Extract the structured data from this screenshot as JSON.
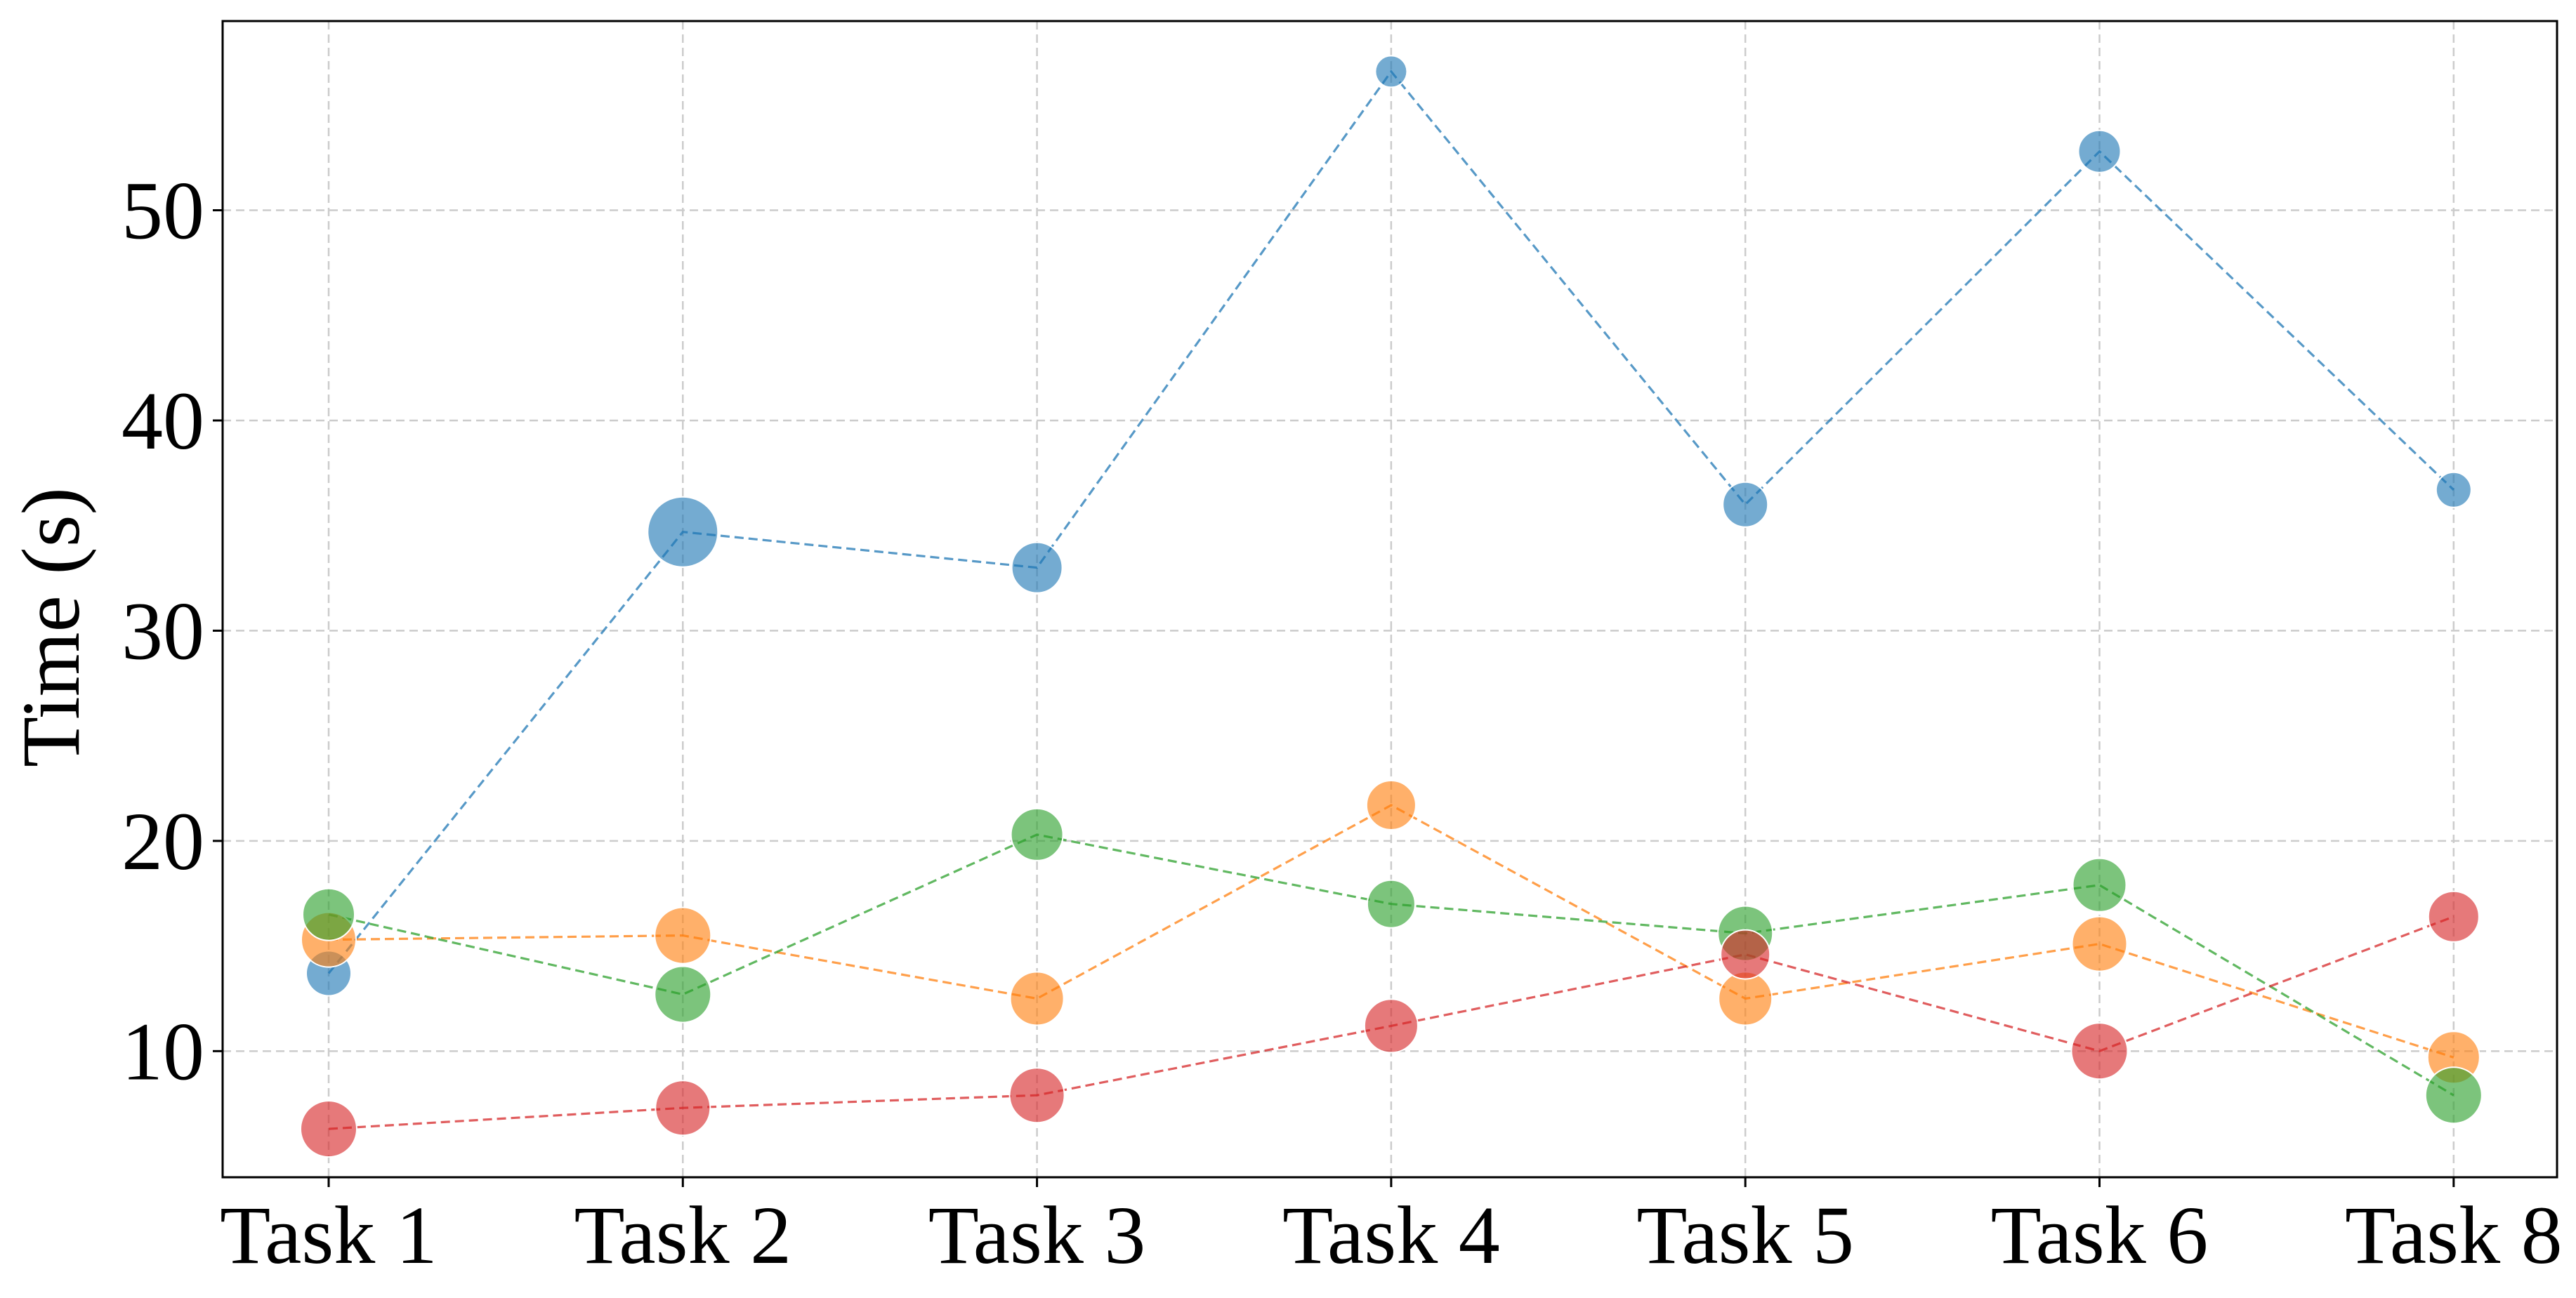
{
  "chart_data": {
    "type": "scatter",
    "title": "",
    "xlabel": "",
    "ylabel": "Time (s)",
    "categories": [
      "Task 1",
      "Task 2",
      "Task 3",
      "Task 4",
      "Task 5",
      "Task 6",
      "Task 8"
    ],
    "ylim": [
      4,
      59
    ],
    "yticks": [
      10,
      20,
      30,
      40,
      50
    ],
    "grid": true,
    "legend": false,
    "series": [
      {
        "color": "#1f77b4",
        "line_style": "dashed",
        "values": [
          13.7,
          34.7,
          33.0,
          56.6,
          36.0,
          52.8,
          36.7
        ],
        "marker_sizes": [
          0.64,
          1.0,
          0.72,
          0.45,
          0.64,
          0.6,
          0.5
        ]
      },
      {
        "color": "#ff7f0e",
        "line_style": "dashed",
        "values": [
          15.3,
          15.5,
          12.5,
          21.7,
          12.5,
          15.1,
          9.7
        ],
        "marker_sizes": [
          0.78,
          0.8,
          0.76,
          0.7,
          0.76,
          0.78,
          0.74
        ]
      },
      {
        "color": "#2ca02c",
        "line_style": "dashed",
        "values": [
          16.5,
          12.7,
          20.3,
          17.0,
          15.6,
          17.9,
          7.9
        ],
        "marker_sizes": [
          0.74,
          0.8,
          0.74,
          0.68,
          0.78,
          0.76,
          0.8
        ]
      },
      {
        "color": "#d62728",
        "line_style": "dashed",
        "values": [
          6.3,
          7.3,
          7.9,
          11.2,
          14.6,
          10.0,
          16.4
        ],
        "marker_sizes": [
          0.8,
          0.78,
          0.78,
          0.76,
          0.7,
          0.8,
          0.72
        ]
      }
    ]
  }
}
